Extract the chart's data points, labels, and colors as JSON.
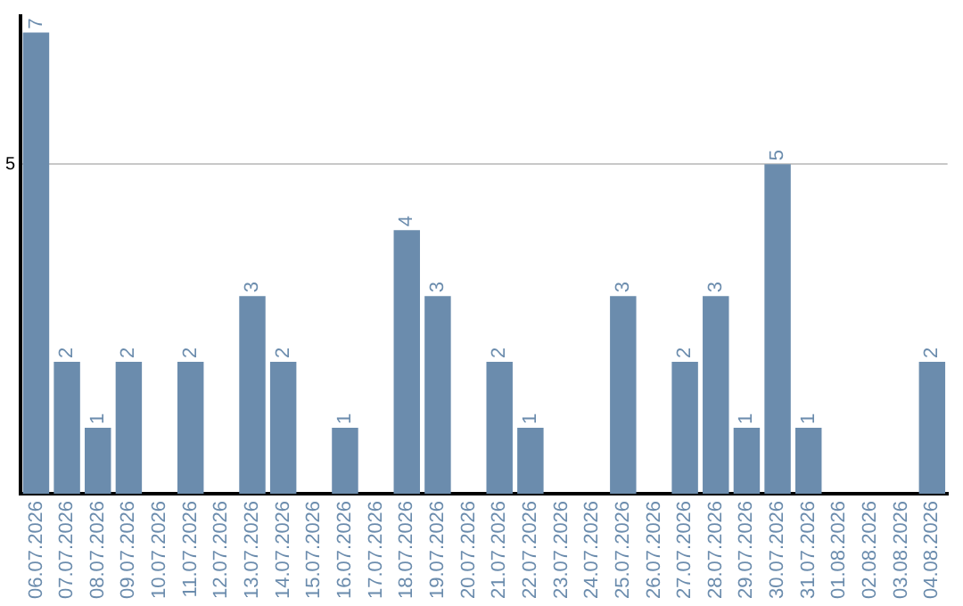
{
  "chart_data": {
    "type": "bar",
    "categories": [
      "06.07.2026",
      "07.07.2026",
      "08.07.2026",
      "09.07.2026",
      "10.07.2026",
      "11.07.2026",
      "12.07.2026",
      "13.07.2026",
      "14.07.2026",
      "15.07.2026",
      "16.07.2026",
      "17.07.2026",
      "18.07.2026",
      "19.07.2026",
      "20.07.2026",
      "21.07.2026",
      "22.07.2026",
      "23.07.2026",
      "24.07.2026",
      "25.07.2026",
      "26.07.2026",
      "27.07.2026",
      "28.07.2026",
      "29.07.2026",
      "30.07.2026",
      "31.07.2026",
      "01.08.2026",
      "02.08.2026",
      "03.08.2026",
      "04.08.2026"
    ],
    "values": [
      7,
      2,
      1,
      2,
      0,
      2,
      0,
      3,
      2,
      0,
      1,
      0,
      4,
      3,
      0,
      2,
      1,
      0,
      0,
      3,
      0,
      2,
      3,
      1,
      5,
      1,
      0,
      0,
      0,
      2
    ],
    "value_labels": [
      "7",
      "2",
      "1",
      "2",
      null,
      "2",
      null,
      "3",
      "2",
      null,
      "1",
      null,
      "4",
      "3",
      null,
      "2",
      "1",
      null,
      null,
      "3",
      null,
      "2",
      "3",
      "1",
      "5",
      "1",
      null,
      null,
      null,
      "2"
    ],
    "color": "#6b8cad",
    "ylim": [
      0,
      7.25
    ],
    "yticks": [
      5
    ],
    "grid": "y",
    "legend": false
  }
}
